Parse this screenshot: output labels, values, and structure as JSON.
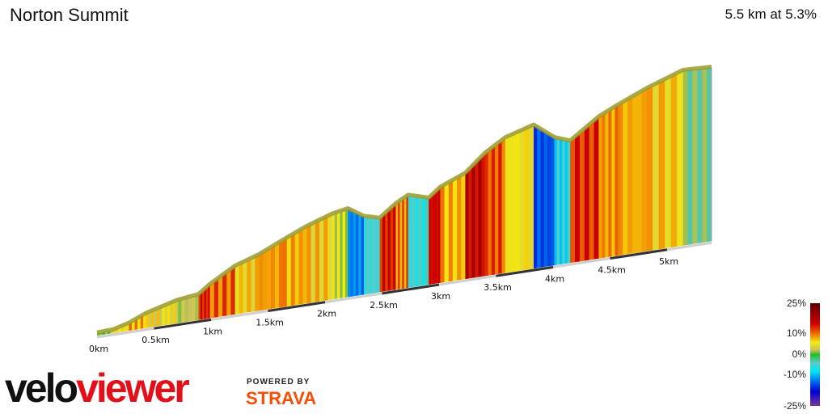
{
  "header": {
    "title": "Norton Summit",
    "summary": "5.5 km at 5.3%"
  },
  "logo": {
    "velo": "velo",
    "viewer": "viewer",
    "powered_by": "POWERED BY",
    "strava": "STRAVA"
  },
  "legend": {
    "labels": [
      "25%",
      "10%",
      "0%",
      "-10%",
      "-25%"
    ],
    "stops": [
      {
        "pct": 25,
        "color": "#5a0000"
      },
      {
        "pct": 15,
        "color": "#d00000"
      },
      {
        "pct": 10,
        "color": "#f07000"
      },
      {
        "pct": 6,
        "color": "#f5ea10"
      },
      {
        "pct": 2,
        "color": "#c8c060"
      },
      {
        "pct": 0,
        "color": "#20c020"
      },
      {
        "pct": -4,
        "color": "#60c8c8"
      },
      {
        "pct": -8,
        "color": "#00e8f0"
      },
      {
        "pct": -13,
        "color": "#0070f0"
      },
      {
        "pct": -18,
        "color": "#0000d0"
      },
      {
        "pct": -25,
        "color": "#7a3a9a"
      }
    ]
  },
  "chart_data": {
    "type": "area",
    "title": "Norton Summit",
    "xlabel": "",
    "ylabel": "",
    "x_ticks": [
      "0km",
      "0.5km",
      "1km",
      "1.5km",
      "2km",
      "2.5km",
      "3km",
      "3.5km",
      "4km",
      "4.5km",
      "5km"
    ],
    "x_tick_values": [
      0,
      0.5,
      1,
      1.5,
      2,
      2.5,
      3,
      3.5,
      4,
      4.5,
      5
    ],
    "distance_km": [
      0,
      0.14,
      0.28,
      0.43,
      0.57,
      0.71,
      0.89,
      0.99,
      1.21,
      1.42,
      1.63,
      1.84,
      2.06,
      2.2,
      2.34,
      2.48,
      2.62,
      2.73,
      2.91,
      3.01,
      3.23,
      3.4,
      3.58,
      3.83,
      4.01,
      4.15,
      4.4,
      4.57,
      4.82,
      5.14,
      5.39
    ],
    "elevation_gain_m": [
      4,
      5,
      12,
      24,
      31,
      38,
      42,
      56,
      80,
      93,
      111,
      128,
      142,
      147,
      130,
      123,
      143,
      154,
      144,
      159,
      176,
      204,
      225,
      239,
      213,
      203,
      236,
      251,
      271,
      292,
      290
    ],
    "color_by": "gradient"
  }
}
